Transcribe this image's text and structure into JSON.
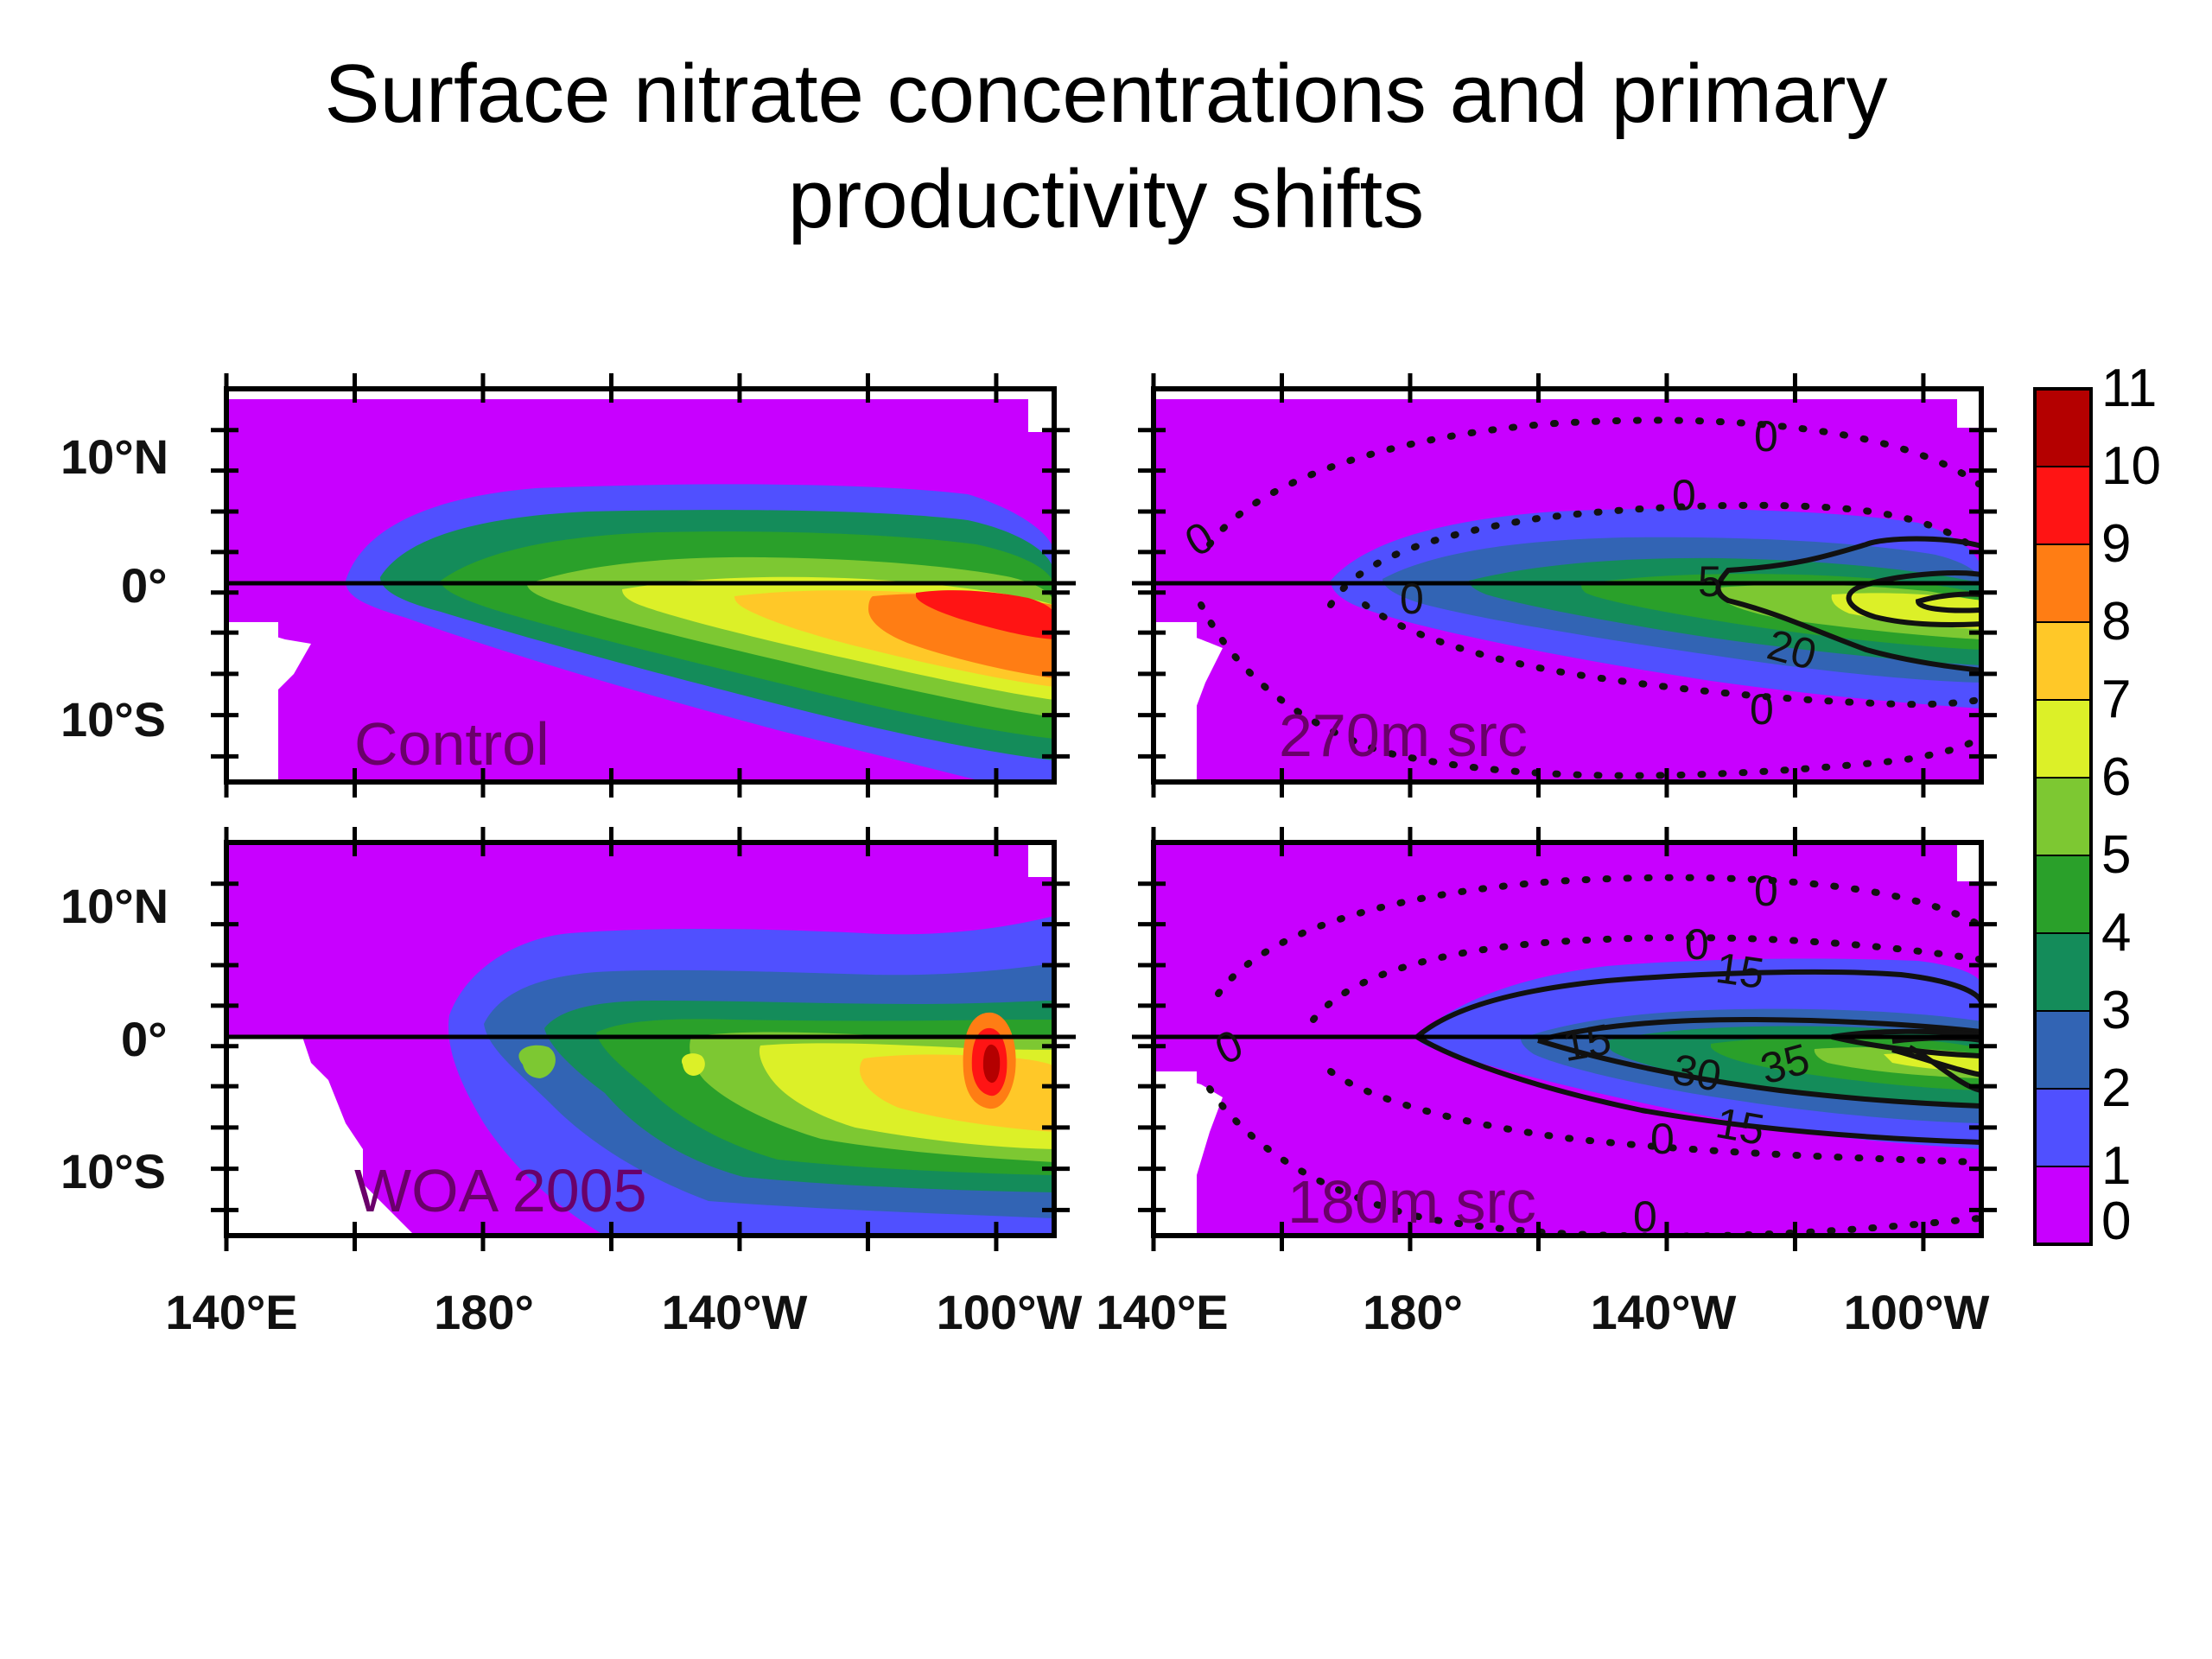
{
  "title_lines": [
    "Surface nitrate concentrations and primary",
    "productivity shifts"
  ],
  "chart_data": {
    "type": "heatmap",
    "title": "Surface nitrate concentrations and primary productivity shifts",
    "x_tick_labels": [
      "140°E",
      "180°",
      "140°W",
      "100°W"
    ],
    "y_tick_labels": [
      "10°N",
      "0°",
      "10°S"
    ],
    "colorbar": {
      "levels": [
        0,
        1,
        2,
        3,
        4,
        5,
        6,
        7,
        8,
        9,
        10,
        11
      ],
      "labels": [
        "0",
        "1",
        "2",
        "3",
        "4",
        "5",
        "6",
        "7",
        "8",
        "9",
        "10",
        "11"
      ],
      "colors": [
        "#c800ff",
        "#5050ff",
        "#3264b4",
        "#148c5a",
        "#2aa02a",
        "#7dc832",
        "#dcf028",
        "#ffc828",
        "#ff7d14",
        "#ff1414",
        "#b40000"
      ]
    },
    "panels": [
      {
        "label": "Control",
        "contour_labels": []
      },
      {
        "label": "270m src",
        "contour_labels": [
          "0",
          "0",
          "0",
          "0",
          "0",
          "5",
          "20",
          "0"
        ]
      },
      {
        "label": "WOA 2005",
        "contour_labels": []
      },
      {
        "label": "180m src",
        "contour_labels": [
          "0",
          "0",
          "0",
          "0",
          "15",
          "15",
          "30",
          "35",
          "15",
          "0"
        ]
      }
    ],
    "grid": false
  }
}
